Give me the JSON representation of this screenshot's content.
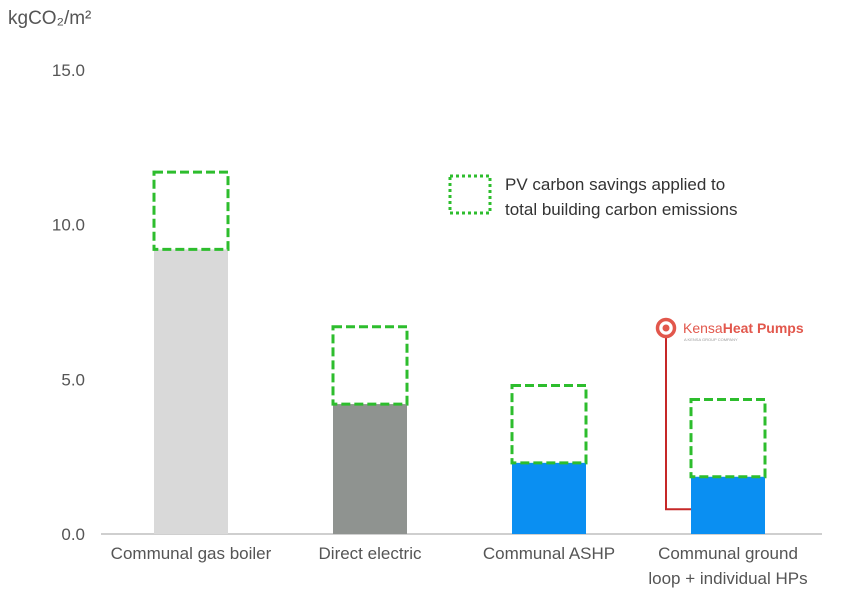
{
  "chart_data": {
    "type": "bar",
    "ylabel": "kgCO₂/m²",
    "ylim": [
      0,
      15
    ],
    "y_ticks": [
      "0.0",
      "5.0",
      "10.0",
      "15.0"
    ],
    "grid": false,
    "categories": [
      [
        "Communal gas boiler"
      ],
      [
        "Direct electric"
      ],
      [
        "Communal ASHP"
      ],
      [
        "Communal ground",
        "loop + individual HPs"
      ]
    ],
    "series": [
      {
        "values": [
          9.2,
          4.2,
          2.3,
          1.85
        ],
        "colors": [
          "#d9d9d9",
          "#8f9390",
          "#0a8ff2",
          "#0a8ff2"
        ]
      },
      {
        "name": "PV carbon savings applied to total building carbon emissions",
        "values": [
          2.5,
          2.5,
          2.5,
          2.5
        ],
        "color": "#2dbd2d"
      }
    ],
    "legend": {
      "lines": [
        "PV carbon savings applied to",
        "total building carbon emissions"
      ],
      "placement": "top-right"
    }
  },
  "logo": {
    "brand_a": "Kensa",
    "brand_b": "Heat Pumps",
    "tagline": "A KENSA GROUP COMPANY",
    "color": "#e2574c",
    "marker_y": 0.8
  }
}
